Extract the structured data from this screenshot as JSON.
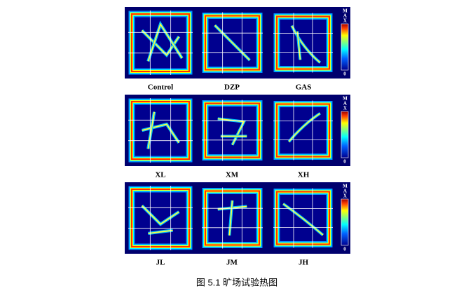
{
  "figure": {
    "rows": [
      {
        "panels": [
          {
            "label": "Control"
          },
          {
            "label": "DZP"
          },
          {
            "label": "GAS"
          }
        ],
        "colorbar": {
          "max": "MAX",
          "min": "0"
        }
      },
      {
        "panels": [
          {
            "label": "XL"
          },
          {
            "label": "XM"
          },
          {
            "label": "XH"
          }
        ],
        "colorbar": {
          "max": "MAX",
          "min": "0"
        }
      },
      {
        "panels": [
          {
            "label": "JL"
          },
          {
            "label": "JM"
          },
          {
            "label": "JH"
          }
        ],
        "colorbar": {
          "max": "MAX",
          "min": "0"
        }
      }
    ],
    "caption": "图 5.1  旷场试验热图"
  }
}
